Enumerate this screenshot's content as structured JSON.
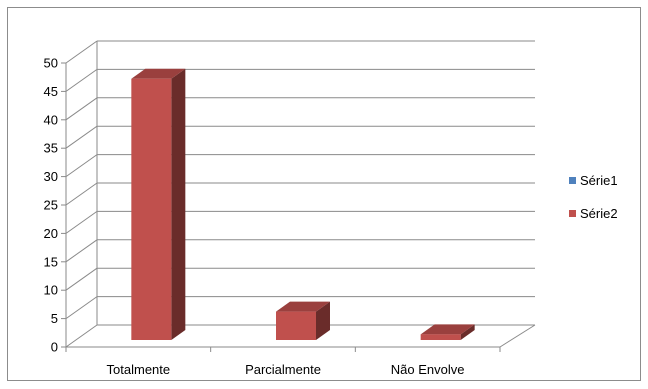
{
  "chart_data": {
    "type": "bar",
    "style": "3d-column",
    "categories": [
      "Totalmente",
      "Parcialmente",
      "Não Envolve"
    ],
    "series": [
      {
        "name": "Série1",
        "color": "#4f81bd",
        "values": [
          0,
          0,
          0
        ]
      },
      {
        "name": "Série2",
        "color": "#c0504d",
        "values": [
          46,
          5,
          1
        ]
      }
    ],
    "ylim": [
      0,
      50
    ],
    "yticks": [
      0,
      5,
      10,
      15,
      20,
      25,
      30,
      35,
      40,
      45,
      50
    ],
    "grid": true,
    "legend_position": "right",
    "title": "",
    "xlabel": "",
    "ylabel": ""
  }
}
